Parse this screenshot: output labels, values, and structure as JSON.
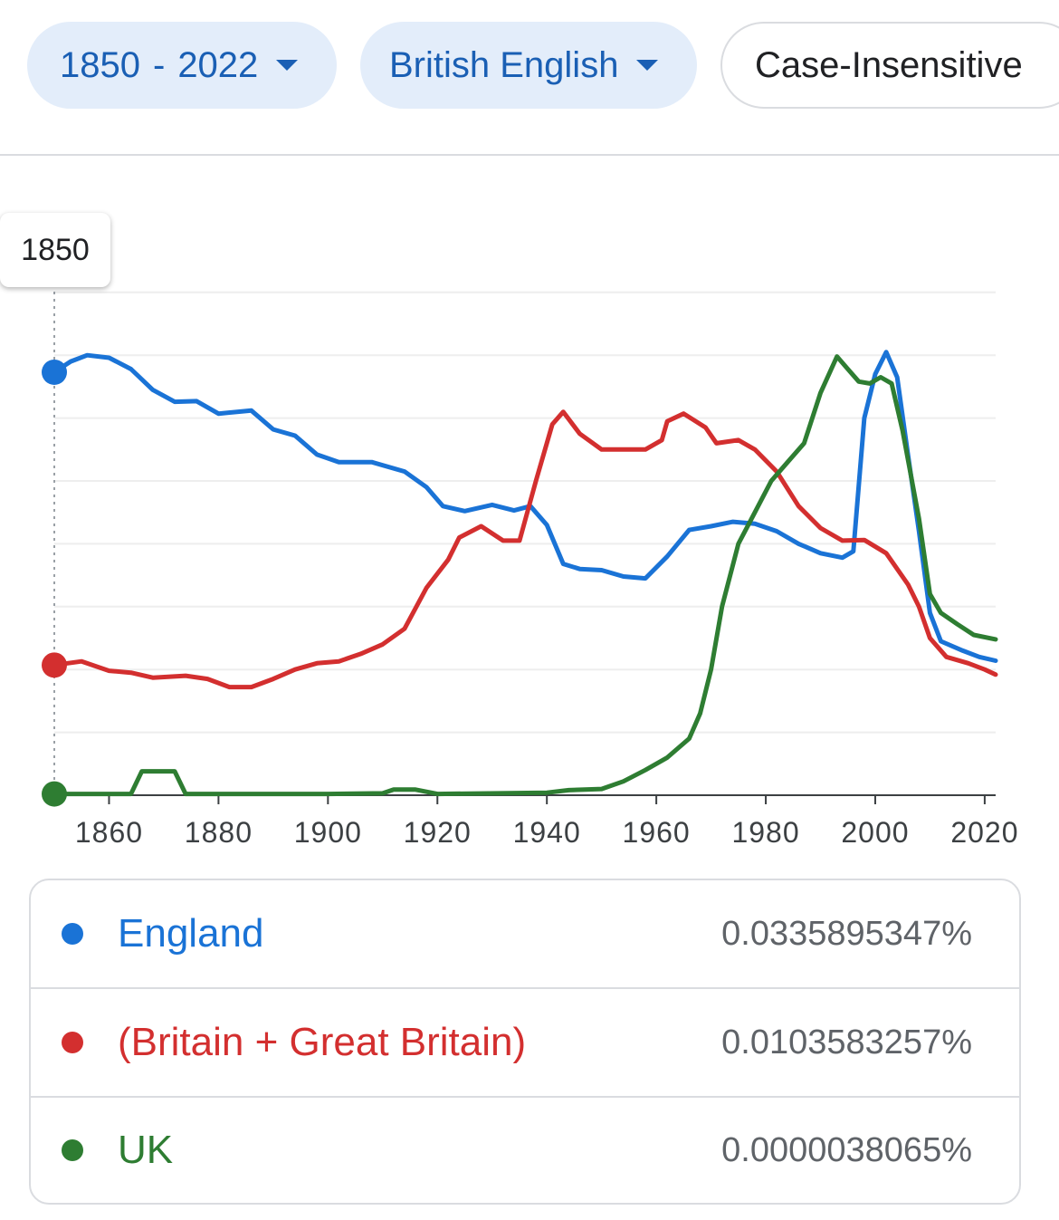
{
  "filters": {
    "year_range_start": "1850",
    "year_range_sep": "-",
    "year_range_end": "2022",
    "corpus": "British English",
    "case": "Case-Insensitive"
  },
  "tooltip": {
    "year": "1850"
  },
  "colors": {
    "England": "#1a73d6",
    "Britain": "#d32f2f",
    "UK": "#2e7d32"
  },
  "legend": {
    "items": [
      {
        "label": "England",
        "value": "0.0335895347%",
        "color": "#1a73d6"
      },
      {
        "label": "(Britain + Great Britain)",
        "value": "0.0103583257%",
        "color": "#d32f2f"
      },
      {
        "label": "UK",
        "value": "0.0000038065%",
        "color": "#2e7d32"
      }
    ]
  },
  "chart_data": {
    "type": "line",
    "x_ticks": [
      "1860",
      "1880",
      "1900",
      "1920",
      "1940",
      "1960",
      "1980",
      "2000",
      "2020"
    ],
    "xlim": [
      1850,
      2022
    ],
    "ylim": [
      0,
      8
    ],
    "grid": true,
    "hover_year": 1850,
    "series": [
      {
        "name": "England",
        "color": "#1a73d6",
        "points": [
          [
            1850,
            6.73
          ],
          [
            1853,
            6.9
          ],
          [
            1856,
            7.0
          ],
          [
            1860,
            6.96
          ],
          [
            1864,
            6.78
          ],
          [
            1868,
            6.45
          ],
          [
            1872,
            6.26
          ],
          [
            1876,
            6.27
          ],
          [
            1880,
            6.07
          ],
          [
            1886,
            6.12
          ],
          [
            1890,
            5.82
          ],
          [
            1894,
            5.72
          ],
          [
            1898,
            5.42
          ],
          [
            1902,
            5.3
          ],
          [
            1908,
            5.3
          ],
          [
            1914,
            5.15
          ],
          [
            1918,
            4.9
          ],
          [
            1921,
            4.6
          ],
          [
            1925,
            4.52
          ],
          [
            1930,
            4.62
          ],
          [
            1934,
            4.53
          ],
          [
            1937,
            4.6
          ],
          [
            1940,
            4.3
          ],
          [
            1943,
            3.68
          ],
          [
            1946,
            3.6
          ],
          [
            1950,
            3.58
          ],
          [
            1954,
            3.48
          ],
          [
            1958,
            3.45
          ],
          [
            1962,
            3.8
          ],
          [
            1966,
            4.22
          ],
          [
            1970,
            4.28
          ],
          [
            1974,
            4.35
          ],
          [
            1978,
            4.32
          ],
          [
            1982,
            4.2
          ],
          [
            1986,
            4.0
          ],
          [
            1990,
            3.85
          ],
          [
            1994,
            3.78
          ],
          [
            1996,
            3.88
          ],
          [
            1998,
            6.0
          ],
          [
            2000,
            6.7
          ],
          [
            2002,
            7.05
          ],
          [
            2004,
            6.65
          ],
          [
            2006,
            5.4
          ],
          [
            2008,
            4.2
          ],
          [
            2010,
            2.9
          ],
          [
            2012,
            2.45
          ],
          [
            2016,
            2.3
          ],
          [
            2019,
            2.2
          ],
          [
            2022,
            2.14
          ]
        ]
      },
      {
        "name": "(Britain + Great Britain)",
        "color": "#d32f2f",
        "points": [
          [
            1850,
            2.07
          ],
          [
            1855,
            2.13
          ],
          [
            1860,
            1.98
          ],
          [
            1864,
            1.95
          ],
          [
            1868,
            1.87
          ],
          [
            1874,
            1.9
          ],
          [
            1878,
            1.85
          ],
          [
            1882,
            1.72
          ],
          [
            1886,
            1.72
          ],
          [
            1890,
            1.85
          ],
          [
            1894,
            2.0
          ],
          [
            1898,
            2.1
          ],
          [
            1902,
            2.13
          ],
          [
            1906,
            2.25
          ],
          [
            1910,
            2.4
          ],
          [
            1914,
            2.65
          ],
          [
            1918,
            3.3
          ],
          [
            1922,
            3.75
          ],
          [
            1924,
            4.1
          ],
          [
            1928,
            4.28
          ],
          [
            1932,
            4.05
          ],
          [
            1935,
            4.05
          ],
          [
            1938,
            5.0
          ],
          [
            1941,
            5.9
          ],
          [
            1943,
            6.1
          ],
          [
            1946,
            5.75
          ],
          [
            1950,
            5.5
          ],
          [
            1954,
            5.5
          ],
          [
            1958,
            5.5
          ],
          [
            1961,
            5.65
          ],
          [
            1962,
            5.95
          ],
          [
            1965,
            6.07
          ],
          [
            1969,
            5.85
          ],
          [
            1971,
            5.6
          ],
          [
            1975,
            5.65
          ],
          [
            1978,
            5.5
          ],
          [
            1982,
            5.15
          ],
          [
            1986,
            4.6
          ],
          [
            1990,
            4.25
          ],
          [
            1994,
            4.05
          ],
          [
            1998,
            4.06
          ],
          [
            2002,
            3.85
          ],
          [
            2006,
            3.35
          ],
          [
            2008,
            3.0
          ],
          [
            2010,
            2.5
          ],
          [
            2013,
            2.2
          ],
          [
            2017,
            2.1
          ],
          [
            2020,
            2.0
          ],
          [
            2022,
            1.92
          ]
        ]
      },
      {
        "name": "UK",
        "color": "#2e7d32",
        "points": [
          [
            1850,
            0.02
          ],
          [
            1860,
            0.02
          ],
          [
            1864,
            0.02
          ],
          [
            1866,
            0.38
          ],
          [
            1872,
            0.38
          ],
          [
            1874,
            0.02
          ],
          [
            1880,
            0.02
          ],
          [
            1900,
            0.02
          ],
          [
            1910,
            0.03
          ],
          [
            1912,
            0.09
          ],
          [
            1916,
            0.09
          ],
          [
            1920,
            0.02
          ],
          [
            1940,
            0.04
          ],
          [
            1944,
            0.08
          ],
          [
            1950,
            0.1
          ],
          [
            1954,
            0.22
          ],
          [
            1958,
            0.4
          ],
          [
            1962,
            0.6
          ],
          [
            1966,
            0.9
          ],
          [
            1968,
            1.3
          ],
          [
            1970,
            2.0
          ],
          [
            1972,
            3.0
          ],
          [
            1975,
            4.0
          ],
          [
            1978,
            4.5
          ],
          [
            1981,
            5.0
          ],
          [
            1984,
            5.3
          ],
          [
            1987,
            5.6
          ],
          [
            1990,
            6.4
          ],
          [
            1993,
            6.98
          ],
          [
            1995,
            6.78
          ],
          [
            1997,
            6.58
          ],
          [
            1999,
            6.55
          ],
          [
            2001,
            6.65
          ],
          [
            2003,
            6.55
          ],
          [
            2005,
            5.8
          ],
          [
            2008,
            4.4
          ],
          [
            2010,
            3.2
          ],
          [
            2012,
            2.9
          ],
          [
            2015,
            2.72
          ],
          [
            2018,
            2.55
          ],
          [
            2022,
            2.48
          ]
        ]
      }
    ]
  }
}
